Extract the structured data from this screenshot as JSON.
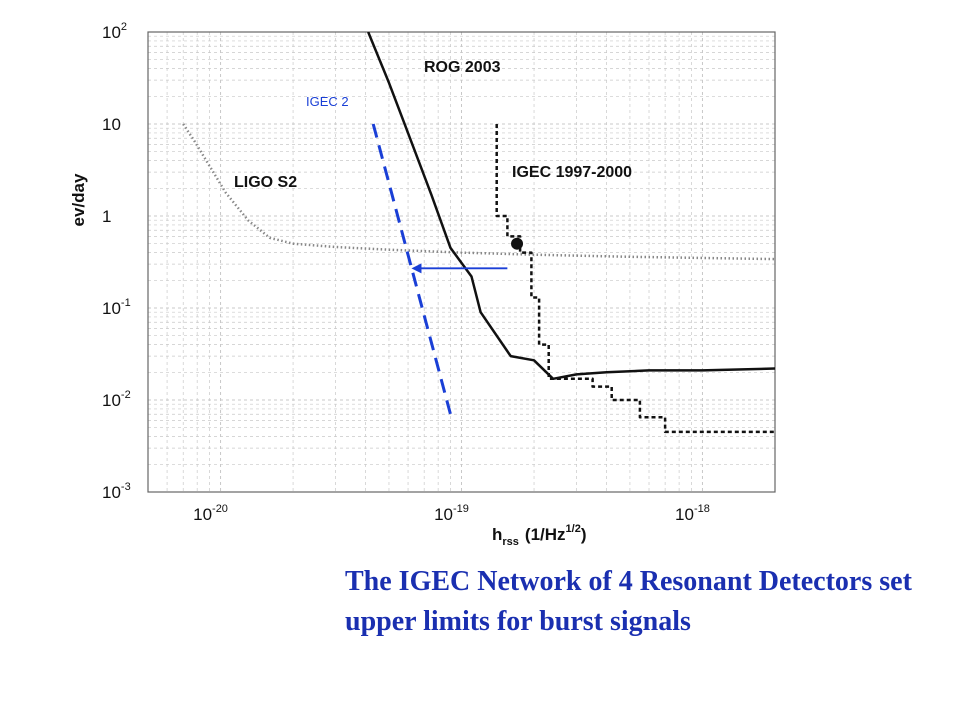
{
  "chart_data": {
    "type": "line",
    "xscale": "log",
    "yscale": "log",
    "xlim": [
      5e-21,
      2e-18
    ],
    "ylim": [
      0.001,
      100
    ],
    "grid": true,
    "x_ticks": [
      {
        "value": 1e-20,
        "base": "10",
        "exp": "-20"
      },
      {
        "value": 1e-19,
        "base": "10",
        "exp": "-19"
      },
      {
        "value": 1e-18,
        "base": "10",
        "exp": "-18"
      }
    ],
    "y_ticks": [
      {
        "value": 100,
        "base": "10",
        "exp": "2"
      },
      {
        "value": 10,
        "base": "10",
        "exp": ""
      },
      {
        "value": 1,
        "base": "1",
        "exp": ""
      },
      {
        "value": 0.1,
        "base": "10",
        "exp": "-1"
      },
      {
        "value": 0.01,
        "base": "10",
        "exp": "-2"
      },
      {
        "value": 0.001,
        "base": "10",
        "exp": "-3"
      }
    ],
    "xlabel_main": "h",
    "xlabel_sub": "rss",
    "xlabel_units_pre": "(1/Hz",
    "xlabel_units_sup": "1/2",
    "xlabel_units_post": ")",
    "ylabel": "ev/day",
    "series": [
      {
        "name": "LIGO S2",
        "style": "dotted",
        "color": "#888888",
        "points": [
          [
            7e-21,
            10
          ],
          [
            7.8e-21,
            6.5
          ],
          [
            9e-21,
            3.5
          ],
          [
            1.05e-20,
            1.8
          ],
          [
            1.3e-20,
            0.9
          ],
          [
            1.6e-20,
            0.58
          ],
          [
            2e-20,
            0.5
          ],
          [
            3e-20,
            0.46
          ],
          [
            5e-20,
            0.43
          ],
          [
            1e-19,
            0.4
          ],
          [
            2e-19,
            0.38
          ],
          [
            5e-19,
            0.36
          ],
          [
            2e-18,
            0.34
          ]
        ]
      },
      {
        "name": "ROG 2003",
        "style": "solid",
        "color": "#111111",
        "points": [
          [
            4.1e-20,
            100
          ],
          [
            5e-20,
            28
          ],
          [
            6e-20,
            8
          ],
          [
            7.5e-20,
            1.7
          ],
          [
            9e-20,
            0.45
          ],
          [
            1.1e-19,
            0.22
          ],
          [
            1.2e-19,
            0.09
          ],
          [
            1.6e-19,
            0.03
          ],
          [
            2e-19,
            0.027
          ],
          [
            2.4e-19,
            0.017
          ],
          [
            3e-19,
            0.019
          ],
          [
            4e-19,
            0.02
          ],
          [
            6e-19,
            0.021
          ],
          [
            1e-18,
            0.021
          ],
          [
            2e-18,
            0.022
          ]
        ]
      },
      {
        "name": "IGEC 1997-2000",
        "style": "dashed-black",
        "color": "#111111",
        "points": [
          [
            1.4e-19,
            10
          ],
          [
            1.4e-19,
            1
          ],
          [
            1.55e-19,
            1
          ],
          [
            1.55e-19,
            0.6
          ],
          [
            1.75e-19,
            0.6
          ],
          [
            1.75e-19,
            0.4
          ],
          [
            1.95e-19,
            0.4
          ],
          [
            1.95e-19,
            0.13
          ],
          [
            2.1e-19,
            0.13
          ],
          [
            2.1e-19,
            0.04
          ],
          [
            2.3e-19,
            0.04
          ],
          [
            2.3e-19,
            0.017
          ],
          [
            3.5e-19,
            0.017
          ],
          [
            3.5e-19,
            0.014
          ],
          [
            4.2e-19,
            0.014
          ],
          [
            4.2e-19,
            0.01
          ],
          [
            5.5e-19,
            0.01
          ],
          [
            5.5e-19,
            0.0065
          ],
          [
            7e-19,
            0.0065
          ],
          [
            7e-19,
            0.0045
          ],
          [
            2e-18,
            0.0045
          ]
        ]
      },
      {
        "name": "IGEC 2",
        "style": "dashed-blue",
        "color": "#1a3fd6",
        "points": [
          [
            4.3e-20,
            10
          ],
          [
            9e-20,
            0.007
          ]
        ]
      }
    ],
    "marker": {
      "x": 1.7e-19,
      "y": 0.5
    },
    "arrow": {
      "from": [
        1.55e-19,
        0.27
      ],
      "to": [
        6.2e-20,
        0.27
      ],
      "color": "#1a3fd6"
    }
  },
  "labels": {
    "rog": "ROG 2003",
    "igec2": "IGEC 2",
    "igec": "IGEC 1997-2000",
    "ligo": "LIGO S2"
  },
  "caption": "The IGEC Network of 4 Resonant Detectors set upper limits for burst signals"
}
